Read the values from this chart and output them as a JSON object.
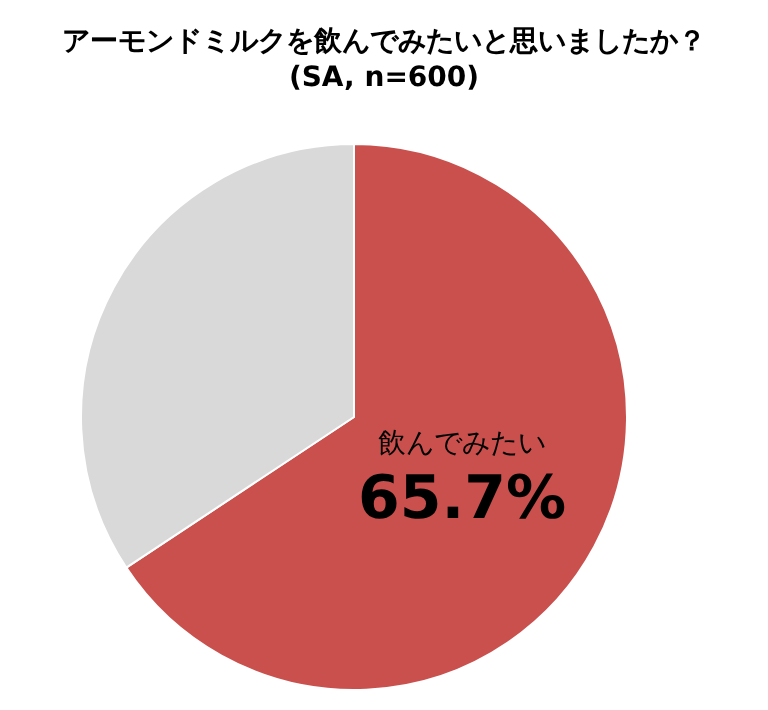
{
  "chart_data": {
    "type": "pie",
    "title": "アーモンドミルクを飲んでみたいと思いましたか？",
    "subtitle": "(SA, n=600)",
    "categories": [
      "飲んでみたい",
      null
    ],
    "values": [
      65.7,
      34.3
    ],
    "colors": [
      "#c9504d",
      "#d9d9d9"
    ],
    "value_labels": [
      "65.7%",
      null
    ]
  }
}
